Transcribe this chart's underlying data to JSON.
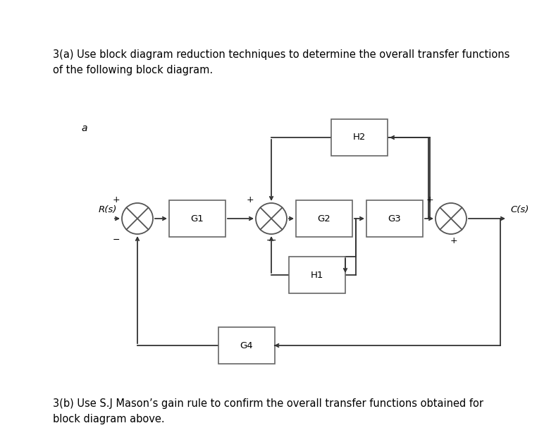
{
  "title_text": "3(a) Use block diagram reduction techniques to determine the overall transfer functions\nof the following block diagram.",
  "subtitle_text": "3(b) Use S.J Mason’s gain rule to confirm the overall transfer functions obtained for\nblock diagram above.",
  "label_a": "a",
  "bg_color": "#ffffff",
  "line_color": "#333333",
  "text_color": "#000000",
  "title_fontsize": 10.5,
  "diagram_fontsize": 9.5
}
